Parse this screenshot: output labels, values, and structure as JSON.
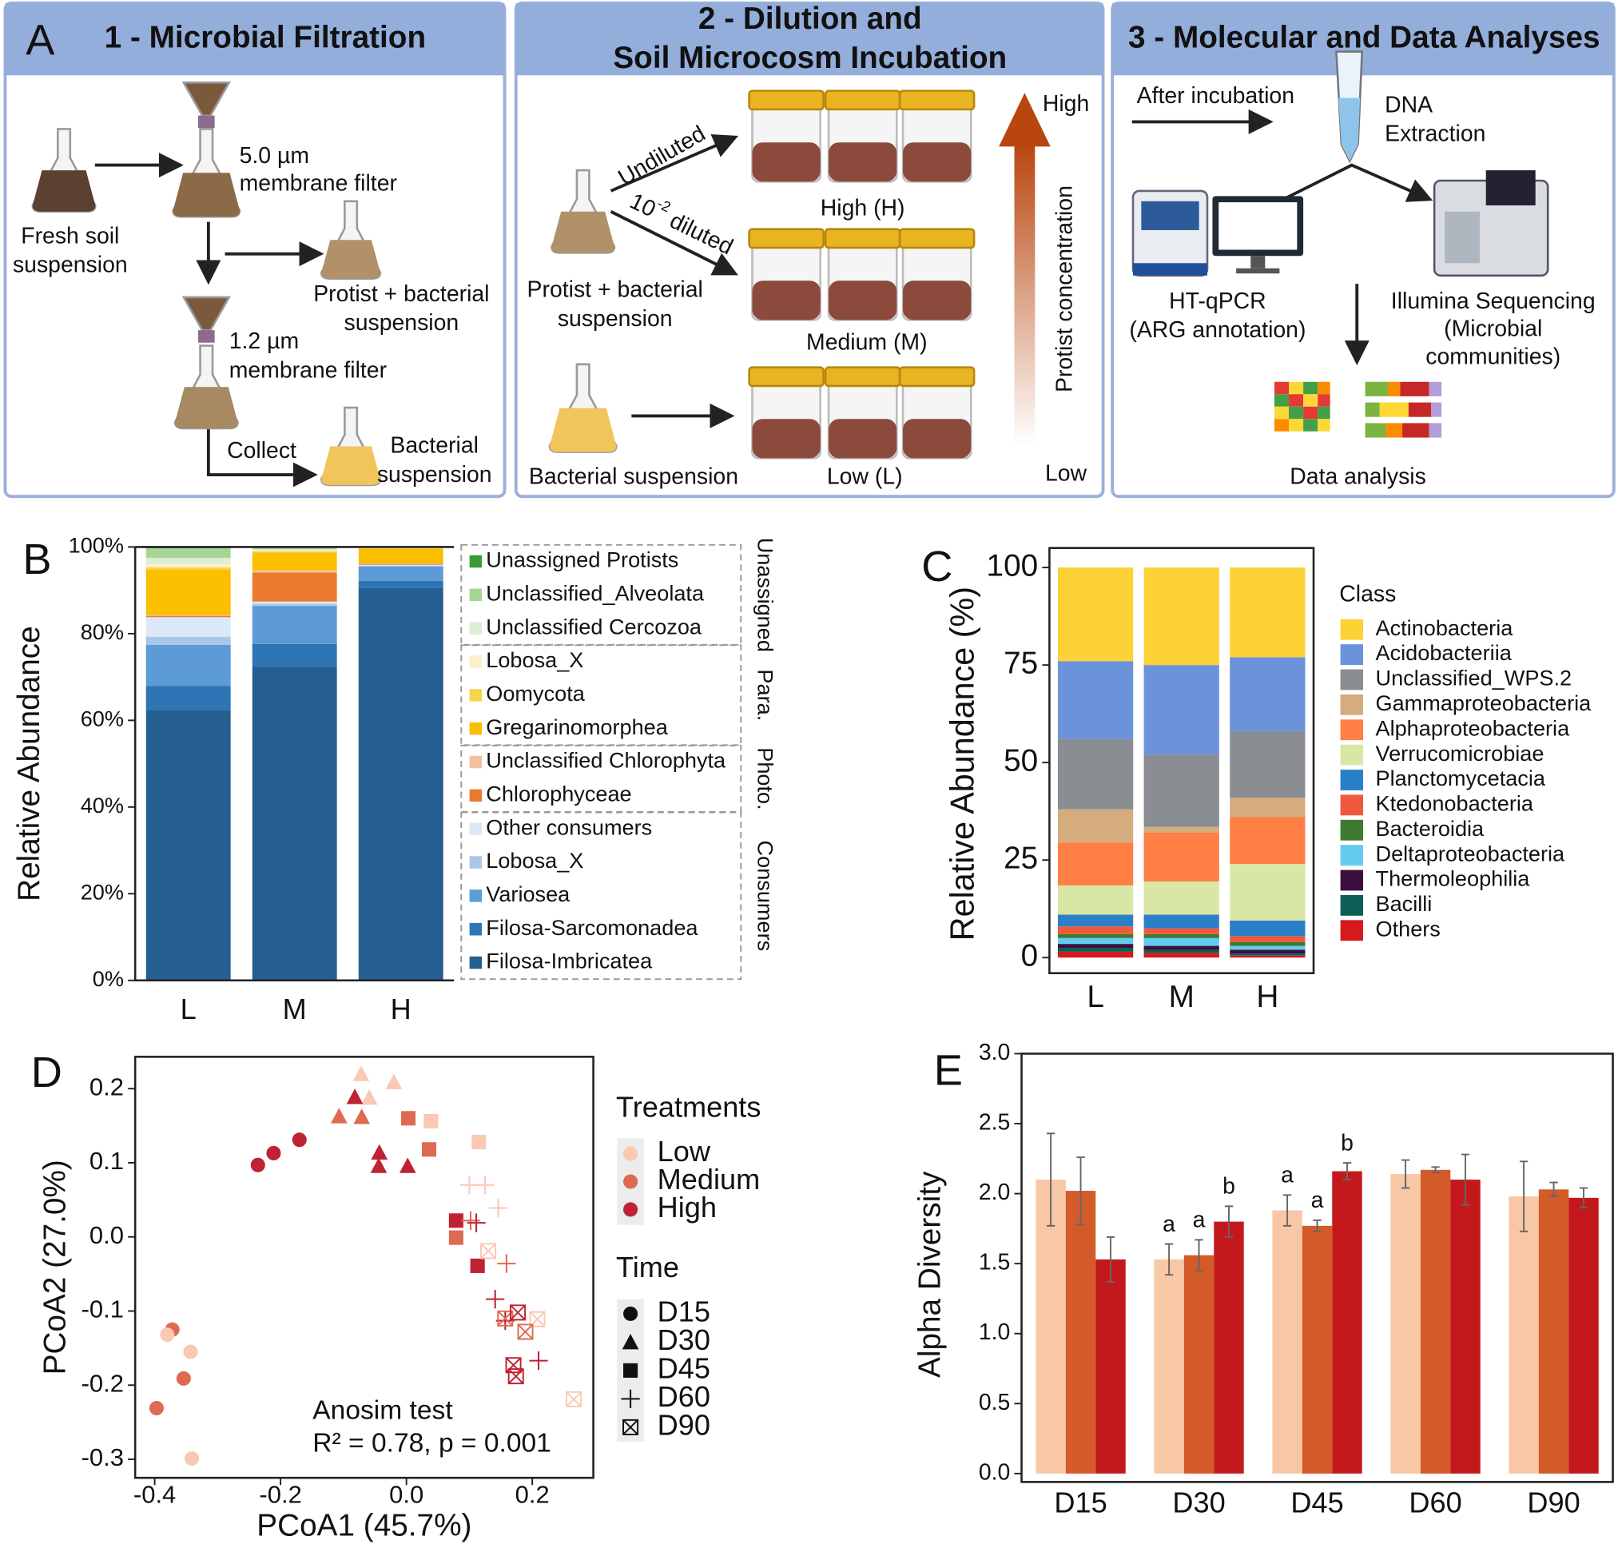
{
  "diagram": {
    "panel_labels": [
      "A",
      "B",
      "C",
      "D",
      "E"
    ],
    "headers": [
      [
        "1 - Microbial Filtration"
      ],
      [
        "2 - Dilution and",
        "Soil Microcosm Incubation"
      ],
      [
        "3 - Molecular and Data Analyses"
      ]
    ],
    "filtration": {
      "fresh_soil": [
        "Fresh soil",
        "suspension"
      ],
      "filter1": [
        "5.0 µm",
        "membrane filter"
      ],
      "protist_bacterial": [
        "Protist + bacterial",
        "suspension"
      ],
      "filter2": [
        "1.2 µm",
        "membrane filter"
      ],
      "collect": "Collect",
      "bacterial": [
        "Bacterial",
        "suspension"
      ]
    },
    "incubation": {
      "undiluted": "Undiluted",
      "diluted": {
        "base": "10",
        "exponent": "-2",
        "text": " diluted"
      },
      "high": "High (H)",
      "medium": "Medium (M)",
      "low": "Low (L)",
      "protist_bacterial": [
        "Protist + bacterial",
        "suspension"
      ],
      "bacterial": "Bacterial suspension",
      "gradient_high": "High",
      "gradient_low": "Low",
      "gradient_label": "Protist concentration"
    },
    "analyses": {
      "after": "After incubation",
      "dna": [
        "DNA",
        "Extraction"
      ],
      "qpcr": [
        "HT-qPCR",
        "(ARG annotation)"
      ],
      "illumina": [
        "Illumina Sequencing",
        "(Microbial",
        "communities)"
      ],
      "data": "Data analysis"
    }
  },
  "chart_data": [
    {
      "type": "bar",
      "stacked": true,
      "ylabel": "Relative Abundance",
      "categories": [
        "L",
        "M",
        "H"
      ],
      "ylim": [
        0,
        100
      ],
      "yticks": [
        {
          "value": 0,
          "label": "0%"
        },
        {
          "value": 20,
          "label": "20%"
        },
        {
          "value": 40,
          "label": "40%"
        },
        {
          "value": 60,
          "label": "60%"
        },
        {
          "value": 80,
          "label": "80%"
        },
        {
          "value": 100,
          "label": "100%"
        }
      ],
      "legend_groups": [
        "Unassigned",
        "Para.",
        "Photo.",
        "Consumers"
      ],
      "series": [
        {
          "name": "Unassigned Protists",
          "group": "Unassigned",
          "color": "#3a9a3a",
          "values": [
            0.3,
            0.2,
            0
          ]
        },
        {
          "name": "Unclassified_Alveolata",
          "group": "Unassigned",
          "color": "#a6d596",
          "values": [
            2.2,
            0.3,
            0.1
          ]
        },
        {
          "name": "Unclassified Cercozoa",
          "group": "Unassigned",
          "color": "#dcefd6",
          "values": [
            1.5,
            0.3,
            0.1
          ]
        },
        {
          "name": "Lobosa_X",
          "group": "Para.",
          "color": "#fdf0c8",
          "values": [
            0.7,
            0.2,
            0.1
          ]
        },
        {
          "name": "Oomycota",
          "group": "Para.",
          "color": "#f8d44c",
          "values": [
            0.5,
            0.3,
            0.1
          ]
        },
        {
          "name": "Gregarinomorphea",
          "group": "Para.",
          "color": "#fbbf00",
          "values": [
            10.5,
            4.1,
            3.4
          ]
        },
        {
          "name": "Unclassified Chlorophyta",
          "group": "Photo.",
          "color": "#f4c19c",
          "values": [
            0.2,
            0.5,
            0.1
          ]
        },
        {
          "name": "Chlorophyceae",
          "group": "Photo.",
          "color": "#e97a2e",
          "values": [
            0.3,
            6.7,
            0.2
          ]
        },
        {
          "name": "Other consumers",
          "group": "Consumers",
          "color": "#dce8f5",
          "values": [
            4.5,
            0.5,
            0.2
          ]
        },
        {
          "name": "Lobosa_X",
          "group": "Consumers",
          "color": "#a9c8e8",
          "values": [
            1.9,
            0.5,
            0.2
          ]
        },
        {
          "name": "Variosea",
          "group": "Consumers",
          "color": "#5c9bd5",
          "values": [
            9.5,
            8.8,
            3.3
          ]
        },
        {
          "name": "Filosa-Sarcomonadea",
          "group": "Consumers",
          "color": "#2e75b6",
          "values": [
            5.5,
            5.2,
            1.7
          ]
        },
        {
          "name": "Filosa-Imbricatea",
          "group": "Consumers",
          "color": "#255e91",
          "values": [
            62.4,
            72.4,
            90.5
          ]
        }
      ]
    },
    {
      "type": "bar",
      "stacked": true,
      "ylabel": "Relative Abundance (%)",
      "legend_title": "Class",
      "categories": [
        "L",
        "M",
        "H"
      ],
      "ylim": [
        -4,
        105
      ],
      "yticks": [
        0,
        25,
        50,
        75,
        100
      ],
      "series": [
        {
          "name": "Actinobacteria",
          "color": "#fdd236",
          "values": [
            24,
            25,
            23
          ]
        },
        {
          "name": "Acidobacteriia",
          "color": "#6b93db",
          "values": [
            20,
            23,
            19
          ]
        },
        {
          "name": "Unclassified_WPS.2",
          "color": "#8a8d91",
          "values": [
            18,
            18.5,
            17
          ]
        },
        {
          "name": "Gammaproteobacteria",
          "color": "#d4ac7d",
          "values": [
            8.5,
            1.5,
            5
          ]
        },
        {
          "name": "Alphaproteobacteria",
          "color": "#ff7f45",
          "values": [
            11,
            12.5,
            12
          ]
        },
        {
          "name": "Verrucomicrobiae",
          "color": "#d8e7a5",
          "values": [
            7.5,
            8.5,
            14.5
          ]
        },
        {
          "name": "Planctomycetacia",
          "color": "#2a7fc9",
          "values": [
            3,
            3.5,
            4
          ]
        },
        {
          "name": "Ktedonobacteria",
          "color": "#ef5a3c",
          "values": [
            2,
            1.5,
            1.5
          ]
        },
        {
          "name": "Bacteroidia",
          "color": "#3f7a33",
          "values": [
            1,
            1,
            1
          ]
        },
        {
          "name": "Deltaproteobacteria",
          "color": "#62ccf0",
          "values": [
            1.5,
            2,
            1
          ]
        },
        {
          "name": "Thermoleophilia",
          "color": "#3a0f3e",
          "values": [
            1,
            1,
            1
          ]
        },
        {
          "name": "Bacilli",
          "color": "#0d5e55",
          "values": [
            1,
            0.8,
            0.5
          ]
        },
        {
          "name": "Others",
          "color": "#d7191c",
          "values": [
            1.5,
            1.2,
            0.5
          ]
        }
      ]
    },
    {
      "type": "scatter",
      "xlabel": "PCoA1 (45.7%)",
      "ylabel": "PCoA2 (27.0%)",
      "xlim": [
        -0.431,
        0.297
      ],
      "ylim": [
        -0.325,
        0.243
      ],
      "xticks": [
        -0.4,
        -0.2,
        {
          "value": 0,
          "label": "0.0"
        },
        0.2
      ],
      "yticks": [
        0.2,
        0.1,
        {
          "value": 0,
          "label": "0.0"
        },
        -0.1,
        -0.2,
        -0.3
      ],
      "treatments_title": "Treatments",
      "treatments": [
        {
          "name": "Low",
          "color": "#f9c9b3"
        },
        {
          "name": "Medium",
          "color": "#de6a52"
        },
        {
          "name": "High",
          "color": "#bf2235"
        }
      ],
      "time_title": "Time",
      "times": [
        {
          "name": "D15",
          "marker": "circle"
        },
        {
          "name": "D30",
          "marker": "triangle"
        },
        {
          "name": "D45",
          "marker": "square"
        },
        {
          "name": "D60",
          "marker": "plus"
        },
        {
          "name": "D90",
          "marker": "boxed-x"
        }
      ],
      "annotation": [
        "Anosim test",
        "R² = 0.78, p = 0.001"
      ],
      "series": [
        {
          "treatment": "High",
          "time": "D15",
          "x": [
            -0.236,
            -0.211,
            -0.17
          ],
          "y": [
            0.097,
            0.113,
            0.131
          ]
        },
        {
          "treatment": "Medium",
          "time": "D15",
          "x": [
            -0.372,
            -0.354,
            -0.397
          ],
          "y": [
            -0.125,
            -0.191,
            -0.231
          ]
        },
        {
          "treatment": "Low",
          "time": "D15",
          "x": [
            -0.38,
            -0.343,
            -0.341
          ],
          "y": [
            -0.132,
            -0.155,
            -0.299
          ]
        },
        {
          "treatment": "Low",
          "time": "D30",
          "x": [
            -0.072,
            -0.02,
            -0.059
          ],
          "y": [
            0.22,
            0.209,
            0.188
          ]
        },
        {
          "treatment": "Medium",
          "time": "D30",
          "x": [
            -0.107,
            -0.071
          ],
          "y": [
            0.163,
            0.162
          ]
        },
        {
          "treatment": "High",
          "time": "D30",
          "x": [
            -0.082,
            -0.043,
            -0.044,
            0.002
          ],
          "y": [
            0.189,
            0.114,
            0.096,
            0.096
          ]
        },
        {
          "treatment": "Low",
          "time": "D45",
          "x": [
            0.039,
            0.115
          ],
          "y": [
            0.156,
            0.128
          ]
        },
        {
          "treatment": "Medium",
          "time": "D45",
          "x": [
            0.003,
            0.036,
            0.079
          ],
          "y": [
            0.16,
            0.118,
            -0.001
          ]
        },
        {
          "treatment": "High",
          "time": "D45",
          "x": [
            0.079,
            0.113
          ],
          "y": [
            0.022,
            -0.039
          ]
        },
        {
          "treatment": "Low",
          "time": "D60",
          "x": [
            0.1,
            0.125,
            0.146
          ],
          "y": [
            0.07,
            0.07,
            0.039
          ]
        },
        {
          "treatment": "Medium",
          "time": "D60",
          "x": [
            0.102,
            0.159
          ],
          "y": [
            0.022,
            -0.036
          ]
        },
        {
          "treatment": "High",
          "time": "D60",
          "x": [
            0.111,
            0.141,
            0.157,
            0.21
          ],
          "y": [
            0.019,
            -0.084,
            -0.113,
            -0.167
          ]
        },
        {
          "treatment": "Low",
          "time": "D90",
          "x": [
            0.13,
            0.208,
            0.266
          ],
          "y": [
            -0.019,
            -0.111,
            -0.219
          ]
        },
        {
          "treatment": "Medium",
          "time": "D90",
          "x": [
            0.157,
            0.189
          ],
          "y": [
            -0.11,
            -0.128
          ]
        },
        {
          "treatment": "High",
          "time": "D90",
          "x": [
            0.177,
            0.17,
            0.174
          ],
          "y": [
            -0.102,
            -0.173,
            -0.188
          ]
        }
      ]
    },
    {
      "type": "bar",
      "ylabel": "Alpha Diversity",
      "categories": [
        "D15",
        "D30",
        "D45",
        "D60",
        "D90"
      ],
      "ylim": [
        -0.06,
        3
      ],
      "yticks": [
        {
          "value": 0,
          "label": "0.0"
        },
        0.5,
        {
          "value": 1,
          "label": "1.0"
        },
        1.5,
        {
          "value": 2,
          "label": "2.0"
        },
        2.5,
        {
          "value": 3,
          "label": "3.0"
        }
      ],
      "series": [
        {
          "color": "#f8c8a6",
          "values": [
            2.1,
            1.53,
            1.88,
            2.14,
            1.98
          ],
          "errors": [
            0.33,
            0.11,
            0.11,
            0.1,
            0.25
          ],
          "letters": [
            null,
            "a",
            "a",
            null,
            null
          ]
        },
        {
          "color": "#d45a2a",
          "values": [
            2.02,
            1.56,
            1.77,
            2.17,
            2.03
          ],
          "errors": [
            0.24,
            0.11,
            0.04,
            0.02,
            0.05
          ],
          "letters": [
            null,
            "a",
            "a",
            null,
            null
          ]
        },
        {
          "color": "#c4191c",
          "values": [
            1.53,
            1.8,
            2.16,
            2.1,
            1.97
          ],
          "errors": [
            0.16,
            0.11,
            0.06,
            0.18,
            0.07
          ],
          "letters": [
            null,
            "b",
            "b",
            null,
            null
          ]
        }
      ]
    }
  ]
}
